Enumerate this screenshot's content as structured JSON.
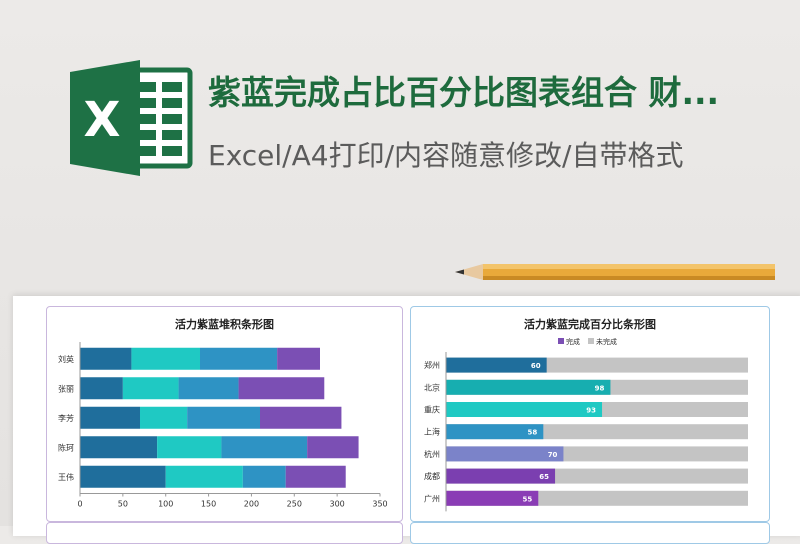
{
  "header": {
    "title": "紫蓝完成占比百分比图表组合 财...",
    "subtitle": "Excel/A4打印/内容随意修改/自带格式",
    "logo_letter": "X"
  },
  "colors": {
    "excel_green": "#1e7145",
    "title_green": "#1e6b3d",
    "seg1": "#1f6e9c",
    "seg2": "#1fc9c3",
    "seg3": "#2e93c4",
    "seg4": "#7b4fb4",
    "remaining": "#c4c4c4"
  },
  "chart_data": [
    {
      "type": "bar",
      "orientation": "horizontal",
      "stacked": true,
      "title": "活力紫蓝堆积条形图",
      "categories": [
        "刘英",
        "张丽",
        "李芳",
        "陈珂",
        "王伟"
      ],
      "series": [
        {
          "values": [
            60,
            50,
            70,
            90,
            100
          ]
        },
        {
          "values": [
            80,
            65,
            55,
            75,
            90
          ]
        },
        {
          "values": [
            90,
            70,
            85,
            100,
            50
          ]
        },
        {
          "values": [
            50,
            100,
            95,
            60,
            70
          ]
        }
      ],
      "x_ticks": [
        0,
        50,
        100,
        150,
        200,
        250,
        300,
        350
      ],
      "xlim": [
        0,
        350
      ]
    },
    {
      "type": "bar",
      "orientation": "horizontal",
      "stacked": true,
      "title": "活力紫蓝完成百分比条形图",
      "legend": [
        "完成",
        "未完成"
      ],
      "legend_position": "top",
      "categories": [
        "郑州",
        "北京",
        "重庆",
        "上海",
        "杭州",
        "成都",
        "广州"
      ],
      "values": [
        60,
        98,
        93,
        58,
        70,
        65,
        55
      ],
      "bar_colors": [
        "#1f6e9c",
        "#17aeb0",
        "#1fc9c3",
        "#2e93c4",
        "#7b83c9",
        "#7b3fb0",
        "#8a3cb5"
      ],
      "xlim": [
        0,
        180
      ]
    }
  ]
}
